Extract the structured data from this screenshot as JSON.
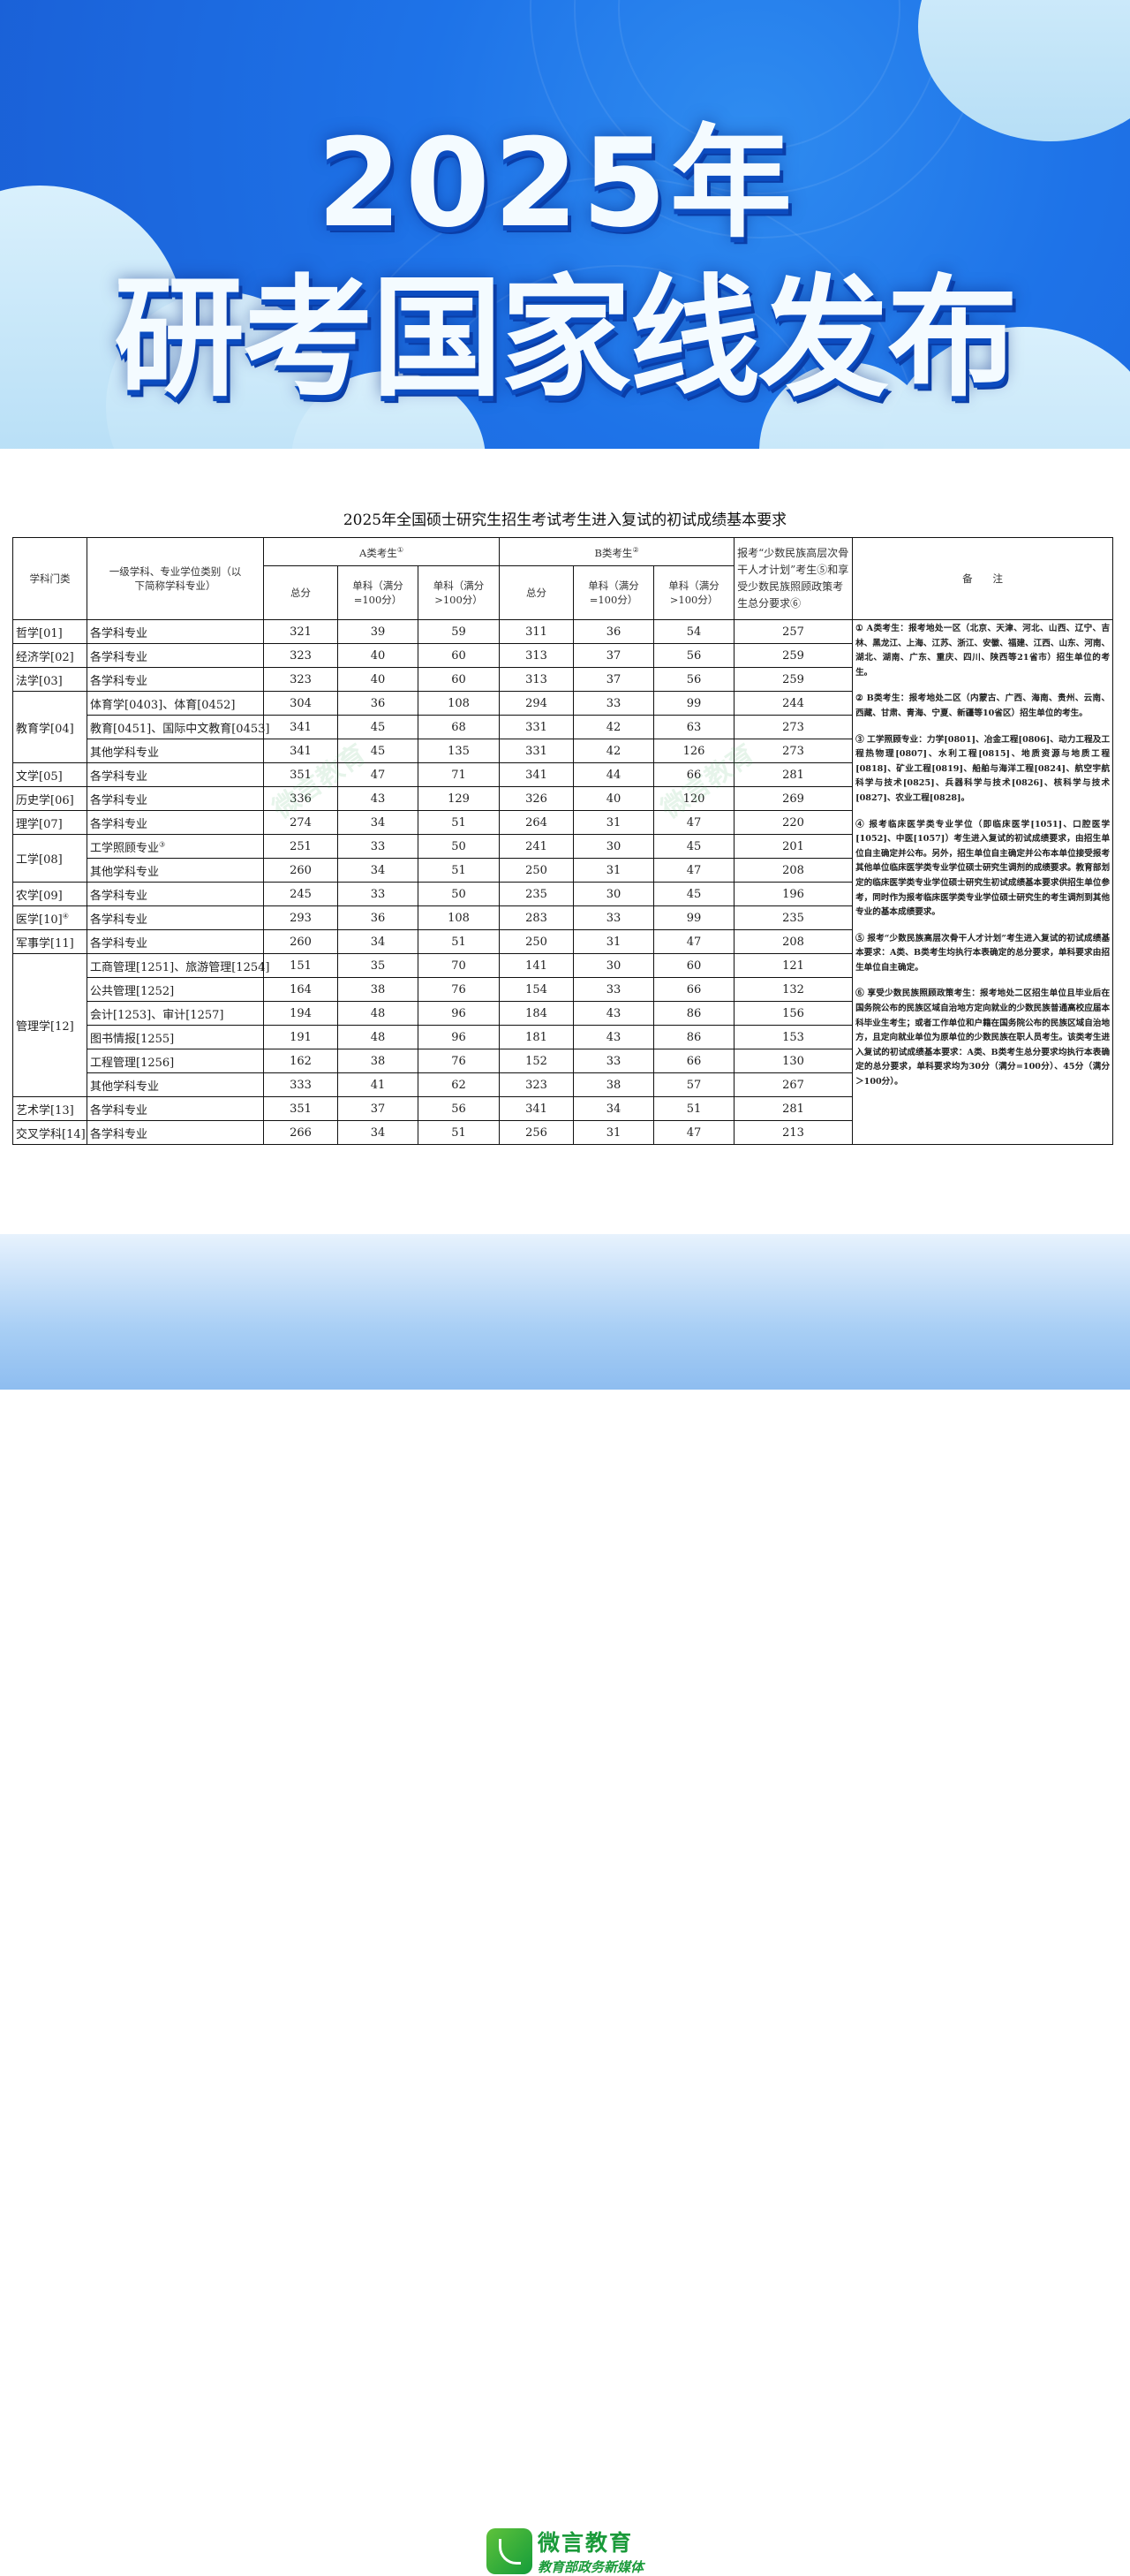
{
  "banner": {
    "line1": "2025年",
    "line2": "研考国家线发布"
  },
  "document": {
    "title": "2025年全国硕士研究生招生考试考生进入复试的初试成绩基本要求",
    "headers": {
      "category": "学科门类",
      "major": "一级学科、专业学位类别（以下简称学科专业）",
      "group_a": "A类考生",
      "group_a_mark": "①",
      "group_b": "B类考生",
      "group_b_mark": "②",
      "minority": "报考“少数民族高层次骨干人才计划”考生⑤和享受少数民族照顾政策考生总分要求⑥",
      "notes": "备　　注",
      "total": "总分",
      "single_100": "单科（满分=100分）",
      "single_over100": "单科（满分>100分）"
    },
    "rows": [
      {
        "category": "哲学[01]",
        "span": 1,
        "major": "各学科专业",
        "a": [
          321,
          39,
          59
        ],
        "b": [
          311,
          36,
          54
        ],
        "m": 257
      },
      {
        "category": "经济学[02]",
        "span": 1,
        "major": "各学科专业",
        "a": [
          323,
          40,
          60
        ],
        "b": [
          313,
          37,
          56
        ],
        "m": 259
      },
      {
        "category": "法学[03]",
        "span": 1,
        "major": "各学科专业",
        "a": [
          323,
          40,
          60
        ],
        "b": [
          313,
          37,
          56
        ],
        "m": 259
      },
      {
        "category": "教育学[04]",
        "span": 3,
        "major": "体育学[0403]、体育[0452]",
        "a": [
          304,
          36,
          108
        ],
        "b": [
          294,
          33,
          99
        ],
        "m": 244
      },
      {
        "major": "教育[0451]、国际中文教育[0453]",
        "a": [
          341,
          45,
          68
        ],
        "b": [
          331,
          42,
          63
        ],
        "m": 273
      },
      {
        "major": "其他学科专业",
        "a": [
          341,
          45,
          135
        ],
        "b": [
          331,
          42,
          126
        ],
        "m": 273
      },
      {
        "category": "文学[05]",
        "span": 1,
        "major": "各学科专业",
        "a": [
          351,
          47,
          71
        ],
        "b": [
          341,
          44,
          66
        ],
        "m": 281
      },
      {
        "category": "历史学[06]",
        "span": 1,
        "major": "各学科专业",
        "a": [
          336,
          43,
          129
        ],
        "b": [
          326,
          40,
          120
        ],
        "m": 269
      },
      {
        "category": "理学[07]",
        "span": 1,
        "major": "各学科专业",
        "a": [
          274,
          34,
          51
        ],
        "b": [
          264,
          31,
          47
        ],
        "m": 220
      },
      {
        "category": "工学[08]",
        "span": 2,
        "major": "工学照顾专业",
        "major_mark": "③",
        "a": [
          251,
          33,
          50
        ],
        "b": [
          241,
          30,
          45
        ],
        "m": 201
      },
      {
        "major": "其他学科专业",
        "a": [
          260,
          34,
          51
        ],
        "b": [
          250,
          31,
          47
        ],
        "m": 208
      },
      {
        "category": "农学[09]",
        "span": 1,
        "major": "各学科专业",
        "a": [
          245,
          33,
          50
        ],
        "b": [
          235,
          30,
          45
        ],
        "m": 196
      },
      {
        "category": "医学[10]",
        "category_mark": "④",
        "span": 1,
        "major": "各学科专业",
        "a": [
          293,
          36,
          108
        ],
        "b": [
          283,
          33,
          99
        ],
        "m": 235
      },
      {
        "category": "军事学[11]",
        "span": 1,
        "major": "各学科专业",
        "a": [
          260,
          34,
          51
        ],
        "b": [
          250,
          31,
          47
        ],
        "m": 208
      },
      {
        "category": "管理学[12]",
        "span": 6,
        "major": "工商管理[1251]、旅游管理[1254]",
        "a": [
          151,
          35,
          70
        ],
        "b": [
          141,
          30,
          60
        ],
        "m": 121
      },
      {
        "major": "公共管理[1252]",
        "a": [
          164,
          38,
          76
        ],
        "b": [
          154,
          33,
          66
        ],
        "m": 132
      },
      {
        "major": "会计[1253]、审计[1257]",
        "a": [
          194,
          48,
          96
        ],
        "b": [
          184,
          43,
          86
        ],
        "m": 156
      },
      {
        "major": "图书情报[1255]",
        "a": [
          191,
          48,
          96
        ],
        "b": [
          181,
          43,
          86
        ],
        "m": 153
      },
      {
        "major": "工程管理[1256]",
        "a": [
          162,
          38,
          76
        ],
        "b": [
          152,
          33,
          66
        ],
        "m": 130
      },
      {
        "major": "其他学科专业",
        "a": [
          333,
          41,
          62
        ],
        "b": [
          323,
          38,
          57
        ],
        "m": 267
      },
      {
        "category": "艺术学[13]",
        "span": 1,
        "major": "各学科专业",
        "a": [
          351,
          37,
          56
        ],
        "b": [
          341,
          34,
          51
        ],
        "m": 281
      },
      {
        "category": "交叉学科[14]",
        "span": 1,
        "major": "各学科专业",
        "a": [
          266,
          34,
          51
        ],
        "b": [
          256,
          31,
          47
        ],
        "m": 213
      }
    ],
    "notes": [
      "① A类考生：报考地处一区（北京、天津、河北、山西、辽宁、吉林、黑龙江、上海、江苏、浙江、安徽、福建、江西、山东、河南、湖北、湖南、广东、重庆、四川、陕西等21省市）招生单位的考生。",
      "② B类考生：报考地处二区（内蒙古、广西、海南、贵州、云南、西藏、甘肃、青海、宁夏、新疆等10省区）招生单位的考生。",
      "③ 工学照顾专业：力学[0801]、冶金工程[0806]、动力工程及工程热物理[0807]、水利工程[0815]、地质资源与地质工程[0818]、矿业工程[0819]、船舶与海洋工程[0824]、航空宇航科学与技术[0825]、兵器科学与技术[0826]、核科学与技术[0827]、农业工程[0828]。",
      "④ 报考临床医学类专业学位（即临床医学[1051]、口腔医学[1052]、中医[1057]）考生进入复试的初试成绩要求，由招生单位自主确定并公布。另外，招生单位自主确定并公布本单位接受报考其他单位临床医学类专业学位硕士研究生调剂的成绩要求。教育部划定的临床医学类专业学位硕士研究生初试成绩基本要求供招生单位参考，同时作为报考临床医学类专业学位硕士研究生的考生调剂到其他专业的基本成绩要求。",
      "⑤ 报考“少数民族高层次骨干人才计划”考生进入复试的初试成绩基本要求：A类、B类考生均执行本表确定的总分要求，单科要求由招生单位自主确定。",
      "⑥ 享受少数民族照顾政策考生：报考地处二区招生单位且毕业后在国务院公布的民族区域自治地方定向就业的少数民族普通高校应届本科毕业生考生；或者工作单位和户籍在国务院公布的民族区域自治地方，且定向就业单位为原单位的少数民族在职人员考生。该类考生进入复试的初试成绩基本要求：A类、B类考生总分要求均执行本表确定的总分要求，单科要求均为30分（满分=100分）、45分（满分＞100分）。"
    ]
  },
  "footer": {
    "brand": "微言教育",
    "tagline": "教育部政务新媒体"
  },
  "colors": {
    "banner_blue": "#1e73e8",
    "brand_green": "#1a9a3a"
  }
}
